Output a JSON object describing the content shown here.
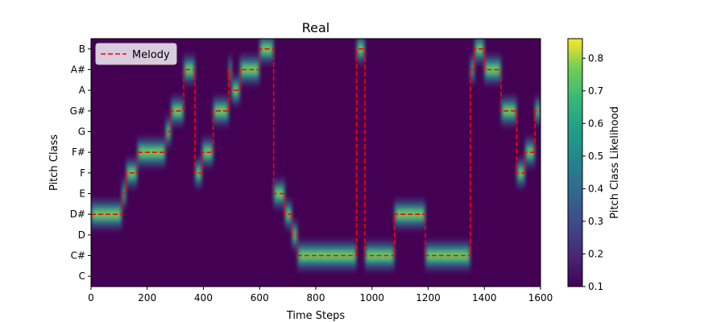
{
  "chart_data": {
    "type": "heatmap",
    "title": "Real",
    "xlabel": "Time Steps",
    "ylabel": "Pitch Class",
    "colorbar_label": "Pitch Class Likelihood",
    "xlim": [
      0,
      1600
    ],
    "x_ticks": [
      "0",
      "200",
      "400",
      "600",
      "800",
      "1000",
      "1200",
      "1400",
      "1600"
    ],
    "x_tick_values": [
      0,
      200,
      400,
      600,
      800,
      1000,
      1200,
      1400,
      1600
    ],
    "y_categories": [
      "C",
      "C#",
      "D",
      "D#",
      "E",
      "F",
      "F#",
      "G",
      "G#",
      "A",
      "A#",
      "B"
    ],
    "colorbar_range": [
      0.1,
      0.86
    ],
    "colorbar_ticks": [
      "0.1",
      "0.2",
      "0.3",
      "0.4",
      "0.5",
      "0.6",
      "0.7",
      "0.8"
    ],
    "colorbar_tick_values": [
      0.1,
      0.2,
      0.3,
      0.4,
      0.5,
      0.6,
      0.7,
      0.8
    ],
    "colormap": "viridis",
    "legend": {
      "placement": "top-left",
      "entries": [
        "Melody"
      ]
    },
    "series": [
      {
        "name": "Melody",
        "color": "#ff0000",
        "style": "dashed",
        "segments": [
          {
            "start": 0,
            "end": 110,
            "pitch": "D#"
          },
          {
            "start": 110,
            "end": 125,
            "pitch": "E"
          },
          {
            "start": 125,
            "end": 165,
            "pitch": "F"
          },
          {
            "start": 165,
            "end": 265,
            "pitch": "F#"
          },
          {
            "start": 265,
            "end": 285,
            "pitch": "G"
          },
          {
            "start": 285,
            "end": 330,
            "pitch": "G#"
          },
          {
            "start": 330,
            "end": 370,
            "pitch": "A#"
          },
          {
            "start": 370,
            "end": 395,
            "pitch": "F"
          },
          {
            "start": 395,
            "end": 435,
            "pitch": "F#"
          },
          {
            "start": 435,
            "end": 490,
            "pitch": "G#"
          },
          {
            "start": 490,
            "end": 500,
            "pitch": "A#"
          },
          {
            "start": 500,
            "end": 530,
            "pitch": "A"
          },
          {
            "start": 530,
            "end": 600,
            "pitch": "A#"
          },
          {
            "start": 600,
            "end": 650,
            "pitch": "B"
          },
          {
            "start": 650,
            "end": 690,
            "pitch": "E"
          },
          {
            "start": 690,
            "end": 715,
            "pitch": "D#"
          },
          {
            "start": 715,
            "end": 735,
            "pitch": "D"
          },
          {
            "start": 735,
            "end": 945,
            "pitch": "C#"
          },
          {
            "start": 945,
            "end": 975,
            "pitch": "B"
          },
          {
            "start": 975,
            "end": 1080,
            "pitch": "C#"
          },
          {
            "start": 1080,
            "end": 1190,
            "pitch": "D#"
          },
          {
            "start": 1190,
            "end": 1350,
            "pitch": "C#"
          },
          {
            "start": 1350,
            "end": 1365,
            "pitch": "A#"
          },
          {
            "start": 1365,
            "end": 1400,
            "pitch": "B"
          },
          {
            "start": 1400,
            "end": 1460,
            "pitch": "A#"
          },
          {
            "start": 1460,
            "end": 1515,
            "pitch": "G#"
          },
          {
            "start": 1515,
            "end": 1545,
            "pitch": "F"
          },
          {
            "start": 1545,
            "end": 1580,
            "pitch": "F#"
          },
          {
            "start": 1580,
            "end": 1600,
            "pitch": "G#"
          }
        ]
      }
    ]
  }
}
